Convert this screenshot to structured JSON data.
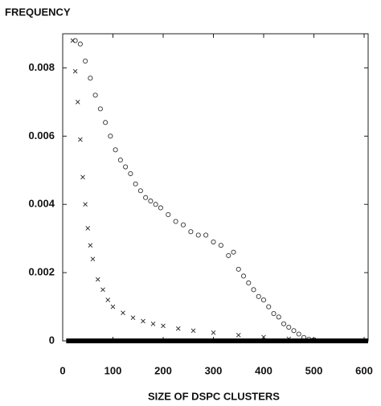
{
  "chart_data": {
    "type": "scatter",
    "title": "FREQUENCY",
    "x_label": "SIZE OF DSPC CLUSTERS",
    "xlim": [
      0,
      608
    ],
    "ylim": [
      0,
      0.009
    ],
    "xticks": [
      0,
      100,
      200,
      300,
      400,
      500,
      600
    ],
    "yticks": [
      0,
      0.002,
      0.004,
      0.006,
      0.008
    ],
    "series": [
      {
        "marker": "circle",
        "color": "#333333",
        "x": [
          25,
          35,
          45,
          55,
          65,
          75,
          85,
          95,
          105,
          115,
          125,
          135,
          145,
          155,
          165,
          175,
          185,
          195,
          210,
          225,
          240,
          255,
          270,
          285,
          300,
          315,
          330,
          340,
          350,
          360,
          370,
          380,
          390,
          400,
          410,
          420,
          430,
          440,
          450,
          460,
          470,
          480,
          490,
          500
        ],
        "values": [
          0.0088,
          0.0087,
          0.0082,
          0.0077,
          0.0072,
          0.0068,
          0.0064,
          0.006,
          0.0056,
          0.0053,
          0.0051,
          0.0049,
          0.0046,
          0.0044,
          0.0042,
          0.0041,
          0.004,
          0.0039,
          0.0037,
          0.0035,
          0.0034,
          0.0032,
          0.0031,
          0.0031,
          0.0029,
          0.0028,
          0.0025,
          0.0026,
          0.0021,
          0.0019,
          0.0017,
          0.0015,
          0.0013,
          0.0012,
          0.001,
          0.0008,
          0.0007,
          0.0005,
          0.0004,
          0.0003,
          0.0002,
          0.0001,
          5e-05,
          2e-05
        ]
      },
      {
        "marker": "cross",
        "color": "#222222",
        "x": [
          20,
          25,
          30,
          35,
          40,
          45,
          50,
          55,
          60,
          70,
          80,
          90,
          100,
          120,
          140,
          160,
          180,
          200,
          230,
          260,
          300,
          350,
          400,
          450,
          500
        ],
        "values": [
          0.0088,
          0.0079,
          0.007,
          0.0059,
          0.0048,
          0.004,
          0.0033,
          0.0028,
          0.0024,
          0.0018,
          0.0015,
          0.0012,
          0.001,
          0.00082,
          0.00068,
          0.00058,
          0.0005,
          0.00044,
          0.00036,
          0.0003,
          0.00024,
          0.00017,
          0.00011,
          6e-05,
          3e-05
        ]
      },
      {
        "marker": "square",
        "color": "#000000",
        "x": [
          15,
          30,
          45,
          60,
          75,
          90,
          105,
          120,
          135,
          150,
          165,
          180,
          195,
          210,
          225,
          240,
          255,
          270,
          285,
          300,
          315,
          330,
          345,
          360,
          375,
          390,
          405,
          420,
          435,
          450,
          465,
          480,
          495,
          510,
          525,
          540,
          555,
          570,
          585,
          600
        ],
        "values": [
          0,
          0,
          0,
          0,
          0,
          0,
          0,
          0,
          0,
          0,
          0,
          0,
          0,
          0,
          0,
          0,
          0,
          0,
          0,
          0,
          0,
          0,
          0,
          0,
          0,
          0,
          0,
          0,
          0,
          0,
          0,
          0,
          0,
          0,
          0,
          0,
          0,
          0,
          0,
          0
        ]
      }
    ]
  }
}
